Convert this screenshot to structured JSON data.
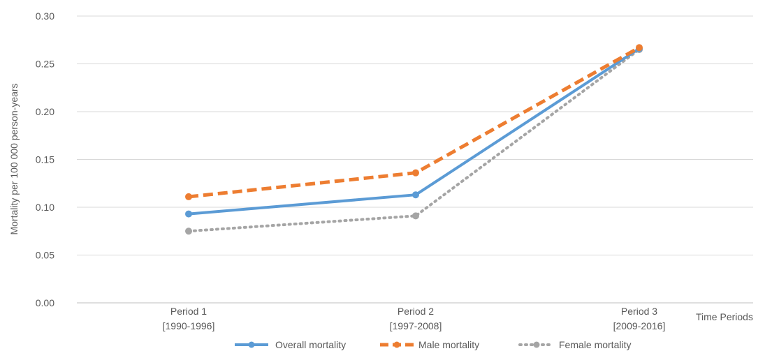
{
  "chart_data": {
    "type": "line",
    "ylabel": "Mortality per 100 000 person-years",
    "xlabel": "Time Periods",
    "ylim": [
      0,
      0.3
    ],
    "yticks": [
      "0.00",
      "0.05",
      "0.10",
      "0.15",
      "0.20",
      "0.25",
      "0.30"
    ],
    "categories": [
      {
        "line1": "Period 1",
        "line2": "[1990-1996]"
      },
      {
        "line1": "Period 2",
        "line2": "[1997-2008]"
      },
      {
        "line1": "Period 3",
        "line2": "[2009-2016]"
      }
    ],
    "grid": true,
    "legend_position": "bottom",
    "series": [
      {
        "name": "Overall mortality",
        "values": [
          0.093,
          0.113,
          0.266
        ],
        "color": "#5b9bd5",
        "style": "solid"
      },
      {
        "name": "Male mortality",
        "values": [
          0.111,
          0.136,
          0.267
        ],
        "color": "#ed7d31",
        "style": "dashed"
      },
      {
        "name": "Female mortality",
        "values": [
          0.075,
          0.091,
          0.265
        ],
        "color": "#a5a5a5",
        "style": "dotted"
      }
    ]
  }
}
